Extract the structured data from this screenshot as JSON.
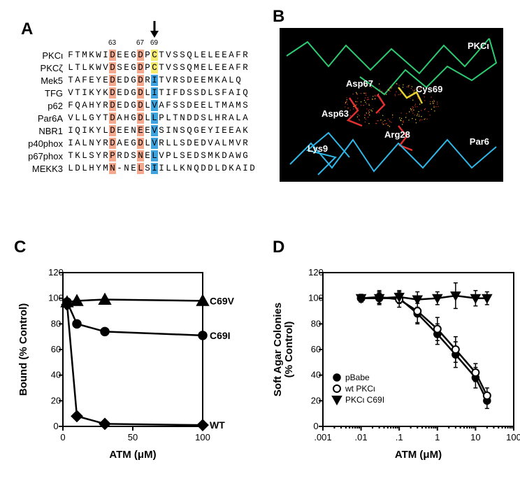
{
  "panels": {
    "A": "A",
    "B": "B",
    "C": "C",
    "D": "D"
  },
  "alignment": {
    "position_labels": [
      "63",
      "67",
      "69"
    ],
    "position_cols": [
      6,
      10,
      12
    ],
    "col_D1": 6,
    "col_D2": 10,
    "col_C": 12,
    "names": [
      "PKCι",
      "PKCζ",
      "Mek5",
      "TFG",
      "p62",
      "Par6A",
      "NBR1",
      "p40phox",
      "p67phox",
      "MEKK3"
    ],
    "sequences": [
      "FTMKWIDEEGDPCTVSSQLELEEAFR",
      "LTLKWVDSEGDPCTVSSQMELEEAFR",
      "TAFEYEDEDGDRITVRSDEEMKALQ",
      "VTIKYKDEDGDLITIFDSSDLSFAIQ",
      "FQAHYRDEDGDLVAFSSDEELTMAMS",
      "VLLGYTDAHGDLLPLTNDDSLHRALA",
      "IQIKYLDEENEEVSINSQGEYIEEAK",
      "IALNYRDAEGDLVRLLSDEDVALMVR",
      "TKLSYRPRDSNELVPLSEDSMKDAWG",
      "LDLHYMN-NELSIILLKNQDDLDKAID"
    ],
    "highlight_D_color": "#f4a88e",
    "highlight_yellow": "#f5e96e",
    "highlight_blue": "#3fa4de",
    "font_size": 12.5
  },
  "structure": {
    "labels": {
      "PKCi": "PKCι",
      "Asp67": "Asp67",
      "Cys69": "Cys69",
      "Asp63": "Asp63",
      "Lys9": "Lys9",
      "Arg28": "Arg28",
      "Par6": "Par6"
    },
    "colors": {
      "bg": "#000000",
      "pkc": "#2ecc71",
      "par6": "#2fb7e8",
      "res_red": "#e03030",
      "res_yellow": "#e8d030",
      "label": "#ffffff"
    }
  },
  "chartC": {
    "type": "line",
    "xlabel": "ATM (μM)",
    "ylabel": "Bound (% Control)",
    "xlim": [
      0,
      100
    ],
    "x_ticks": [
      0,
      50,
      100
    ],
    "ylim": [
      0,
      120
    ],
    "y_ticks": [
      0,
      20,
      40,
      60,
      80,
      100,
      120
    ],
    "series": [
      {
        "name": "C69V",
        "label": "C69V",
        "marker": "triangle",
        "points": [
          [
            3,
            97
          ],
          [
            10,
            98
          ],
          [
            30,
            99
          ],
          [
            100,
            98
          ]
        ]
      },
      {
        "name": "C69I",
        "label": "C69I",
        "marker": "circle",
        "points": [
          [
            3,
            97
          ],
          [
            10,
            80
          ],
          [
            30,
            74
          ],
          [
            100,
            71
          ]
        ]
      },
      {
        "name": "WT",
        "label": "WT",
        "marker": "diamond",
        "points": [
          [
            3,
            95
          ],
          [
            10,
            8
          ],
          [
            30,
            2
          ],
          [
            100,
            1
          ]
        ]
      }
    ],
    "line_color": "#000000",
    "marker_size": 6
  },
  "chartD": {
    "type": "semilogx",
    "xlabel": "ATM (μM)",
    "ylabel": "Soft Agar Colonies\n(% Control)",
    "xlim_exp": [
      -3,
      2
    ],
    "x_tick_labels": [
      ".001",
      ".01",
      ".1",
      "1",
      "10",
      "100"
    ],
    "ylim": [
      0,
      120
    ],
    "y_ticks": [
      0,
      20,
      40,
      60,
      80,
      100,
      120
    ],
    "series": [
      {
        "name": "pBabe",
        "label": "pBabe",
        "marker": "filled-circle",
        "open": false,
        "points": [
          {
            "x": 0.01,
            "y": 100,
            "err": 3
          },
          {
            "x": 0.03,
            "y": 100,
            "err": 5
          },
          {
            "x": 0.1,
            "y": 100,
            "err": 4
          },
          {
            "x": 0.3,
            "y": 88,
            "err": 8
          },
          {
            "x": 1,
            "y": 72,
            "err": 8
          },
          {
            "x": 3,
            "y": 56,
            "err": 10
          },
          {
            "x": 10,
            "y": 38,
            "err": 8
          },
          {
            "x": 20,
            "y": 20,
            "err": 6
          }
        ]
      },
      {
        "name": "wt PKCi",
        "label": "wt PKCι",
        "marker": "open-circle",
        "open": true,
        "points": [
          {
            "x": 0.01,
            "y": 100,
            "err": 3
          },
          {
            "x": 0.03,
            "y": 101,
            "err": 5
          },
          {
            "x": 0.1,
            "y": 99,
            "err": 6
          },
          {
            "x": 0.3,
            "y": 90,
            "err": 9
          },
          {
            "x": 1,
            "y": 76,
            "err": 9
          },
          {
            "x": 3,
            "y": 60,
            "err": 10
          },
          {
            "x": 10,
            "y": 42,
            "err": 7
          },
          {
            "x": 20,
            "y": 24,
            "err": 6
          }
        ]
      },
      {
        "name": "PKCi C69I",
        "label": "PKCι C69I",
        "marker": "filled-triangle-down",
        "open": false,
        "points": [
          {
            "x": 0.01,
            "y": 100,
            "err": 3
          },
          {
            "x": 0.03,
            "y": 100,
            "err": 4
          },
          {
            "x": 0.1,
            "y": 101,
            "err": 5
          },
          {
            "x": 0.3,
            "y": 99,
            "err": 6
          },
          {
            "x": 1,
            "y": 100,
            "err": 5
          },
          {
            "x": 3,
            "y": 102,
            "err": 10
          },
          {
            "x": 10,
            "y": 100,
            "err": 6
          },
          {
            "x": 20,
            "y": 100,
            "err": 5
          }
        ]
      }
    ],
    "line_color": "#000000",
    "marker_size": 5
  }
}
